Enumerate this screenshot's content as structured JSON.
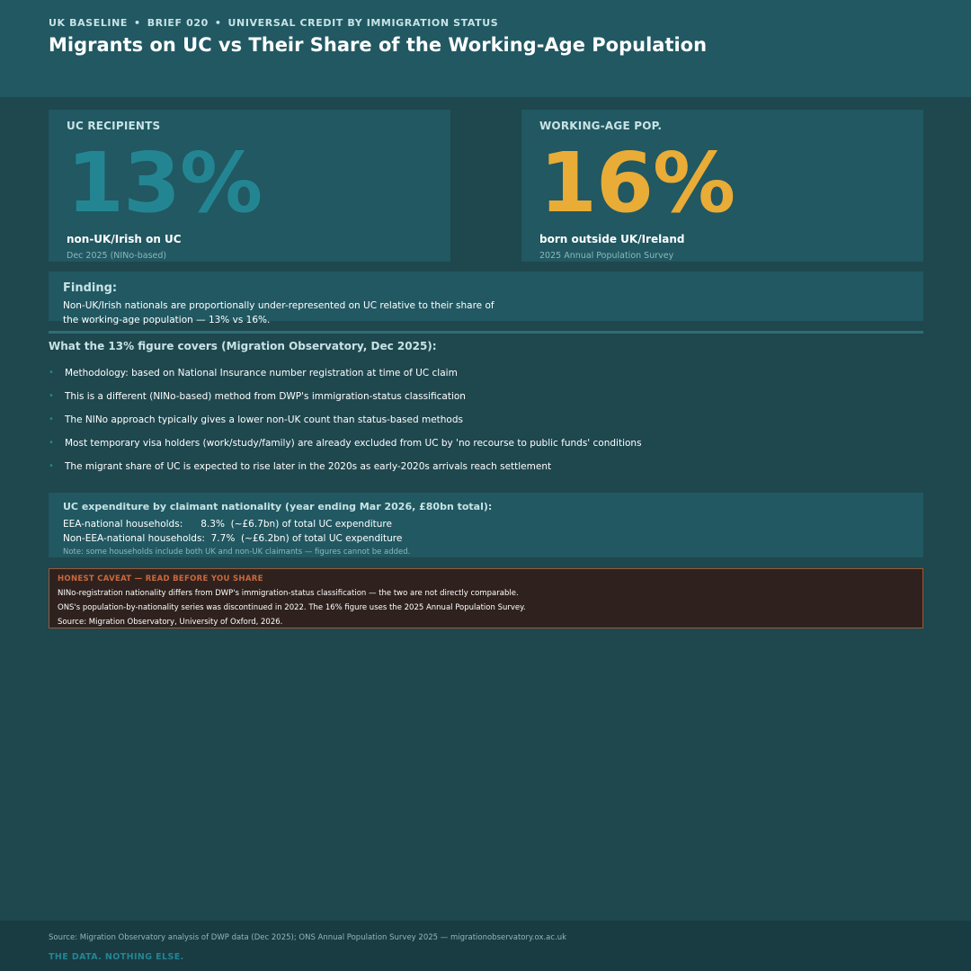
{
  "header": {
    "eyebrow": {
      "part1": "UK BASELINE",
      "part2": "BRIEF 020",
      "part3": "UNIVERSAL CREDIT BY IMMIGRATION STATUS",
      "separator": "•"
    },
    "title": "Migrants on UC vs Their Share of the Working-Age Population"
  },
  "stats": [
    {
      "label": "UC RECIPIENTS",
      "value": "13%",
      "description": "non-UK/Irish on UC",
      "source": "Dec 2025 (NINo-based)",
      "color": "#248592"
    },
    {
      "label": "WORKING-AGE POP.",
      "value": "16%",
      "description": "born outside UK/Ireland",
      "source": "2025 Annual Population Survey",
      "color": "#e9ac36"
    }
  ],
  "finding": {
    "title": "Finding:",
    "text": "Non-UK/Irish nationals are proportionally under-represented on UC relative to their share of the working-age population — 13% vs 16%."
  },
  "covers": {
    "heading": "What the 13% figure covers (Migration Observatory, Dec 2025):",
    "bullet_symbol": "•",
    "items": [
      "Methodology: based on National Insurance number registration at time of UC claim",
      "This is a different (NINo-based) method from DWP's immigration-status classification",
      "The NINo approach typically gives a lower non-UK count than status-based methods",
      "Most temporary visa holders (work/study/family) are already excluded from UC by 'no recourse to public funds' conditions",
      "The migrant share of UC is expected to rise later in the 2020s as early-2020s arrivals reach settlement"
    ]
  },
  "expenditure": {
    "title": "UC expenditure by claimant nationality (year ending Mar 2026, £80bn total):",
    "row1": "EEA-national households:      8.3%  (~£6.7bn) of total UC expenditure",
    "row2": "Non-EEA-national households:  7.7%  (~£6.2bn) of total UC expenditure",
    "note": "Note: some households include both UK and non-UK claimants — figures cannot be added."
  },
  "caveat": {
    "title": "HONEST CAVEAT — READ BEFORE YOU SHARE",
    "line1": "NINo-registration nationality differs from DWP's immigration-status classification — the two are not directly comparable.",
    "line2": "ONS's population-by-nationality series was discontinued in 2022. The 16% figure uses the 2025 Annual Population Survey.",
    "line3": "Source: Migration Observatory, University of Oxford, 2026."
  },
  "footer": {
    "source": "Source: Migration Observatory analysis of DWP data (Dec 2025); ONS Annual Population Survey 2025 — migrationobservatory.ox.ac.uk",
    "tagline": "THE DATA. NOTHING ELSE."
  },
  "colors": {
    "background": "#1f474e",
    "panel": "#215862",
    "teal_accent": "#248592",
    "amber_accent": "#e9ac36",
    "caveat_border": "#9b5a3c"
  }
}
